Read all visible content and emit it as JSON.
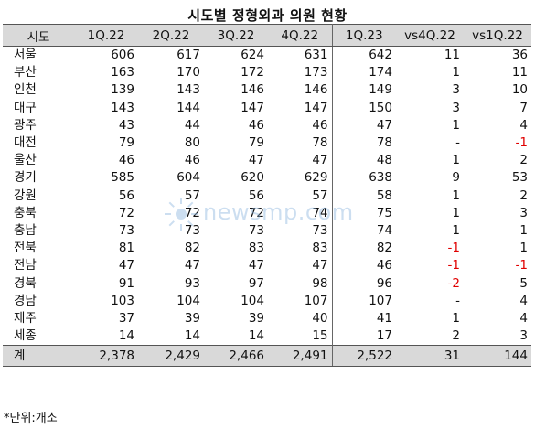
{
  "title": "시도별 정형외과 의원 현황",
  "headers": [
    "시도",
    "1Q.22",
    "2Q.22",
    "3Q.22",
    "4Q.22",
    "1Q.23",
    "vs4Q.22",
    "vs1Q.22"
  ],
  "rows": [
    {
      "region": "서울",
      "values": [
        "606",
        "617",
        "624",
        "631",
        "642",
        "11",
        "36"
      ]
    },
    {
      "region": "부산",
      "values": [
        "163",
        "170",
        "172",
        "173",
        "174",
        "1",
        "11"
      ]
    },
    {
      "region": "인천",
      "values": [
        "139",
        "143",
        "146",
        "146",
        "149",
        "3",
        "10"
      ]
    },
    {
      "region": "대구",
      "values": [
        "143",
        "144",
        "147",
        "147",
        "150",
        "3",
        "7"
      ]
    },
    {
      "region": "광주",
      "values": [
        "43",
        "44",
        "46",
        "46",
        "47",
        "1",
        "4"
      ]
    },
    {
      "region": "대전",
      "values": [
        "79",
        "80",
        "79",
        "78",
        "78",
        "-",
        "-1"
      ]
    },
    {
      "region": "울산",
      "values": [
        "46",
        "46",
        "47",
        "47",
        "48",
        "1",
        "2"
      ]
    },
    {
      "region": "경기",
      "values": [
        "585",
        "604",
        "620",
        "629",
        "638",
        "9",
        "53"
      ]
    },
    {
      "region": "강원",
      "values": [
        "56",
        "57",
        "56",
        "57",
        "58",
        "1",
        "2"
      ]
    },
    {
      "region": "충북",
      "values": [
        "72",
        "72",
        "72",
        "74",
        "75",
        "1",
        "3"
      ]
    },
    {
      "region": "충남",
      "values": [
        "73",
        "73",
        "73",
        "73",
        "74",
        "1",
        "1"
      ]
    },
    {
      "region": "전북",
      "values": [
        "81",
        "82",
        "83",
        "83",
        "82",
        "-1",
        "1"
      ]
    },
    {
      "region": "전남",
      "values": [
        "47",
        "47",
        "47",
        "47",
        "46",
        "-1",
        "-1"
      ]
    },
    {
      "region": "경북",
      "values": [
        "91",
        "93",
        "97",
        "98",
        "96",
        "-2",
        "5"
      ]
    },
    {
      "region": "경남",
      "values": [
        "103",
        "104",
        "104",
        "107",
        "107",
        "-",
        "4"
      ]
    },
    {
      "region": "제주",
      "values": [
        "37",
        "39",
        "39",
        "40",
        "41",
        "1",
        "4"
      ]
    },
    {
      "region": "세종",
      "values": [
        "14",
        "14",
        "14",
        "15",
        "17",
        "2",
        "3"
      ]
    }
  ],
  "total": {
    "region": "계",
    "values": [
      "2,378",
      "2,429",
      "2,466",
      "2,491",
      "2,522",
      "31",
      "144"
    ]
  },
  "note": "*단위:개소",
  "watermark": "newsmp.com",
  "colors": {
    "header_bg": "#d9d9d9",
    "negative": "#e00000",
    "watermark": "#8fb8e0"
  }
}
